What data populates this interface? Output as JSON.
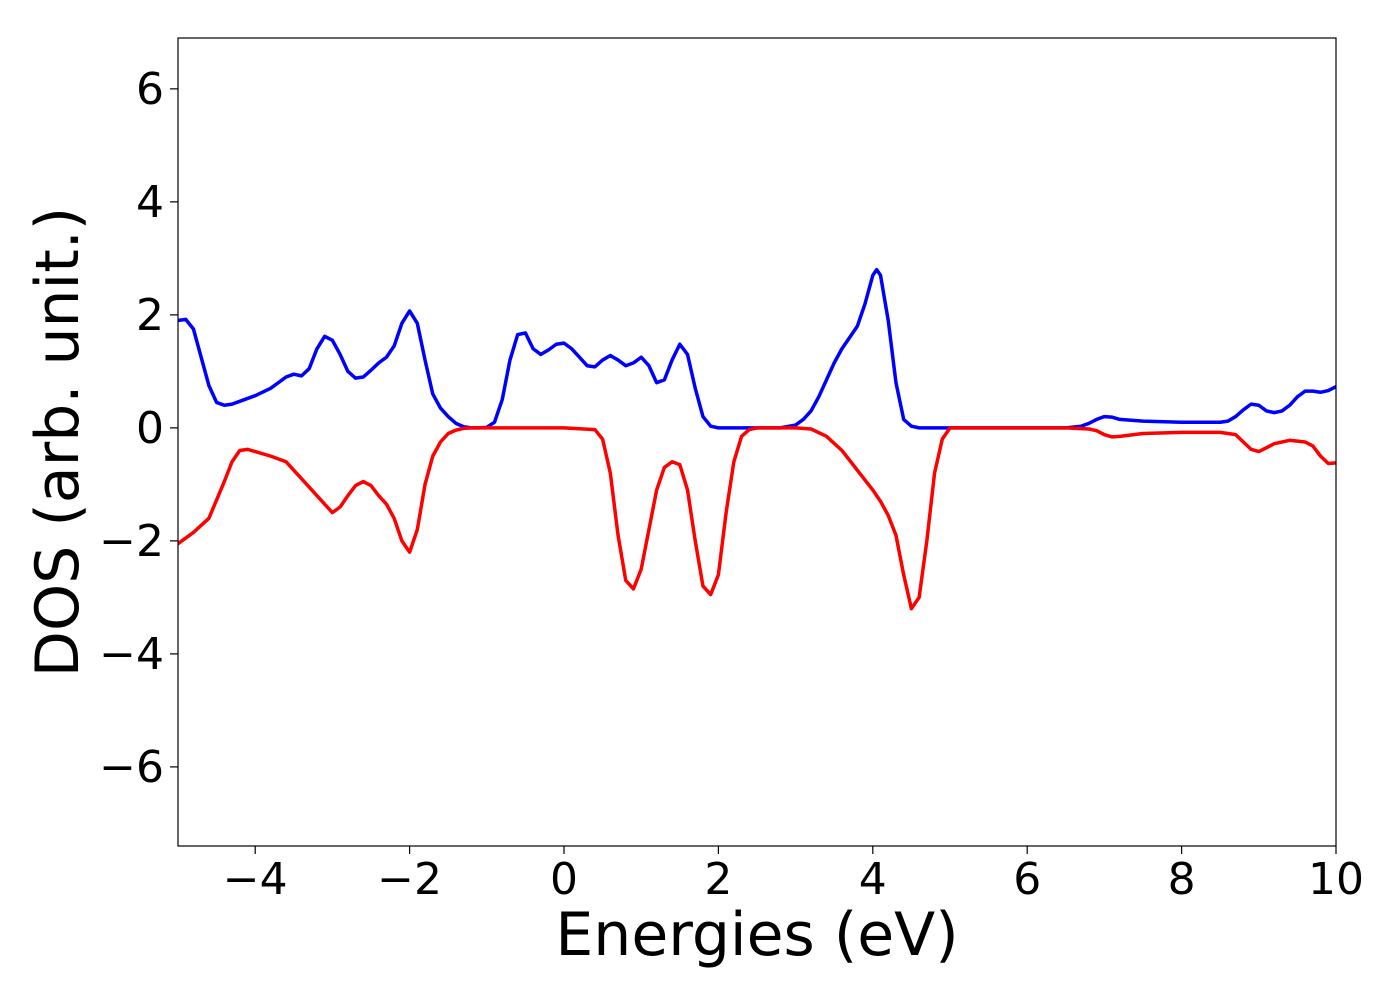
{
  "chart_data": {
    "type": "line",
    "title": "",
    "xlabel": "Energies (eV)",
    "ylabel": "DOS (arb. unit.)",
    "xlim": [
      -5,
      10
    ],
    "ylim": [
      -7.4,
      6.9
    ],
    "xticks": [
      -4,
      -2,
      0,
      2,
      4,
      6,
      8,
      10
    ],
    "yticks": [
      -6,
      -4,
      -2,
      0,
      2,
      4,
      6
    ],
    "xtick_labels": [
      "−4",
      "−2",
      "0",
      "2",
      "4",
      "6",
      "8",
      "10"
    ],
    "ytick_labels": [
      "−6",
      "−4",
      "−2",
      "0",
      "2",
      "4",
      "6"
    ],
    "grid": false,
    "legend": "none",
    "series": [
      {
        "color": "#0000ff",
        "x": [
          -5.0,
          -4.9,
          -4.8,
          -4.7,
          -4.6,
          -4.5,
          -4.4,
          -4.3,
          -4.2,
          -4.0,
          -3.8,
          -3.6,
          -3.5,
          -3.4,
          -3.3,
          -3.2,
          -3.1,
          -3.0,
          -2.9,
          -2.8,
          -2.7,
          -2.6,
          -2.5,
          -2.4,
          -2.3,
          -2.2,
          -2.1,
          -2.0,
          -1.9,
          -1.8,
          -1.7,
          -1.6,
          -1.5,
          -1.4,
          -1.3,
          -1.2,
          -1.1,
          -1.0,
          -0.9,
          -0.8,
          -0.7,
          -0.6,
          -0.5,
          -0.4,
          -0.3,
          -0.2,
          -0.1,
          0.0,
          0.1,
          0.2,
          0.3,
          0.4,
          0.5,
          0.6,
          0.7,
          0.8,
          0.9,
          1.0,
          1.1,
          1.2,
          1.3,
          1.4,
          1.5,
          1.6,
          1.7,
          1.8,
          1.9,
          2.0,
          2.2,
          2.5,
          2.8,
          3.0,
          3.1,
          3.2,
          3.3,
          3.4,
          3.5,
          3.6,
          3.7,
          3.8,
          3.9,
          4.0,
          4.05,
          4.1,
          4.2,
          4.3,
          4.4,
          4.5,
          4.6,
          4.8,
          5.0,
          5.5,
          6.0,
          6.5,
          6.7,
          6.8,
          6.9,
          7.0,
          7.1,
          7.2,
          7.5,
          8.0,
          8.5,
          8.6,
          8.7,
          8.8,
          8.9,
          9.0,
          9.1,
          9.2,
          9.3,
          9.4,
          9.5,
          9.6,
          9.7,
          9.8,
          9.9,
          10.0
        ],
        "y": [
          1.9,
          1.92,
          1.75,
          1.25,
          0.75,
          0.45,
          0.4,
          0.42,
          0.47,
          0.57,
          0.7,
          0.9,
          0.95,
          0.92,
          1.05,
          1.4,
          1.62,
          1.55,
          1.3,
          1.0,
          0.88,
          0.9,
          1.02,
          1.15,
          1.25,
          1.45,
          1.85,
          2.07,
          1.85,
          1.2,
          0.6,
          0.35,
          0.2,
          0.08,
          0.02,
          0.0,
          0.0,
          0.01,
          0.1,
          0.5,
          1.2,
          1.65,
          1.68,
          1.4,
          1.3,
          1.38,
          1.48,
          1.5,
          1.4,
          1.25,
          1.1,
          1.08,
          1.2,
          1.28,
          1.2,
          1.1,
          1.15,
          1.25,
          1.1,
          0.8,
          0.85,
          1.2,
          1.48,
          1.3,
          0.7,
          0.2,
          0.03,
          0.0,
          0.0,
          0.0,
          0.0,
          0.05,
          0.15,
          0.3,
          0.55,
          0.85,
          1.15,
          1.4,
          1.6,
          1.8,
          2.2,
          2.7,
          2.8,
          2.7,
          1.9,
          0.8,
          0.15,
          0.03,
          0.0,
          0.0,
          0.0,
          0.0,
          0.0,
          0.0,
          0.03,
          0.08,
          0.15,
          0.2,
          0.19,
          0.15,
          0.12,
          0.1,
          0.1,
          0.12,
          0.2,
          0.32,
          0.42,
          0.4,
          0.3,
          0.27,
          0.3,
          0.4,
          0.55,
          0.65,
          0.65,
          0.63,
          0.66,
          0.73
        ]
      },
      {
        "color": "#ff0000",
        "x": [
          -5.0,
          -4.8,
          -4.6,
          -4.4,
          -4.3,
          -4.2,
          -4.1,
          -4.0,
          -3.8,
          -3.6,
          -3.4,
          -3.2,
          -3.1,
          -3.0,
          -2.9,
          -2.8,
          -2.7,
          -2.6,
          -2.5,
          -2.4,
          -2.3,
          -2.2,
          -2.1,
          -2.0,
          -1.9,
          -1.8,
          -1.7,
          -1.6,
          -1.5,
          -1.4,
          -1.3,
          -1.2,
          -1.0,
          -0.5,
          0.0,
          0.4,
          0.5,
          0.6,
          0.7,
          0.8,
          0.9,
          1.0,
          1.1,
          1.2,
          1.3,
          1.4,
          1.5,
          1.6,
          1.7,
          1.8,
          1.9,
          2.0,
          2.1,
          2.2,
          2.3,
          2.4,
          2.5,
          2.6,
          2.8,
          3.0,
          3.2,
          3.4,
          3.6,
          3.8,
          4.0,
          4.1,
          4.2,
          4.3,
          4.4,
          4.5,
          4.6,
          4.7,
          4.8,
          4.9,
          5.0,
          5.5,
          6.0,
          6.5,
          6.8,
          6.9,
          7.0,
          7.1,
          7.2,
          7.5,
          8.0,
          8.5,
          8.7,
          8.8,
          8.9,
          9.0,
          9.1,
          9.2,
          9.4,
          9.6,
          9.7,
          9.8,
          9.9,
          10.0
        ],
        "y": [
          -2.05,
          -1.85,
          -1.6,
          -0.95,
          -0.6,
          -0.4,
          -0.38,
          -0.42,
          -0.5,
          -0.6,
          -0.9,
          -1.2,
          -1.35,
          -1.5,
          -1.4,
          -1.2,
          -1.02,
          -0.95,
          -1.02,
          -1.2,
          -1.35,
          -1.6,
          -2.0,
          -2.2,
          -1.8,
          -1.0,
          -0.5,
          -0.25,
          -0.1,
          -0.04,
          -0.01,
          0.0,
          0.0,
          0.0,
          0.0,
          -0.03,
          -0.2,
          -0.8,
          -1.9,
          -2.7,
          -2.85,
          -2.5,
          -1.8,
          -1.1,
          -0.7,
          -0.6,
          -0.65,
          -1.1,
          -2.0,
          -2.8,
          -2.95,
          -2.6,
          -1.5,
          -0.6,
          -0.15,
          -0.03,
          0.0,
          0.0,
          0.0,
          0.0,
          -0.02,
          -0.15,
          -0.4,
          -0.75,
          -1.1,
          -1.3,
          -1.55,
          -1.9,
          -2.6,
          -3.2,
          -3.0,
          -2.0,
          -0.8,
          -0.2,
          0.0,
          0.0,
          0.0,
          0.0,
          -0.02,
          -0.05,
          -0.12,
          -0.16,
          -0.15,
          -0.1,
          -0.08,
          -0.08,
          -0.12,
          -0.25,
          -0.38,
          -0.42,
          -0.35,
          -0.28,
          -0.22,
          -0.25,
          -0.32,
          -0.5,
          -0.63,
          -0.62
        ]
      }
    ]
  }
}
